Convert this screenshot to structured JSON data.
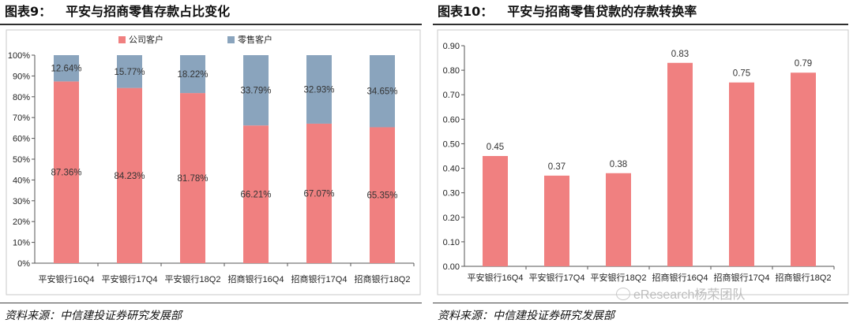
{
  "left_panel": {
    "title_num": "图表9：",
    "title": "平安与招商零售存款占比变化",
    "source": "资料来源：中信建投证券研究发展部"
  },
  "right_panel": {
    "title_num": "图表10：",
    "title": "平安与招商零售贷款的存款转换率",
    "source": "资料来源：中信建投证券研究发展部"
  },
  "watermark": "eResearch杨荣团队",
  "chart_data": [
    {
      "type": "bar",
      "stacked": true,
      "percent": true,
      "categories": [
        "平安银行16Q4",
        "平安银行17Q4",
        "平安银行18Q2",
        "招商银行16Q4",
        "招商银行17Q4",
        "招商银行18Q2"
      ],
      "series": [
        {
          "name": "公司客户",
          "values": [
            87.36,
            84.23,
            81.78,
            66.21,
            67.07,
            65.35
          ],
          "labels": [
            "87.36%",
            "84.23%",
            "81.78%",
            "66.21%",
            "67.07%",
            "65.35%"
          ],
          "color": "#f08080"
        },
        {
          "name": "零售客户",
          "values": [
            12.64,
            15.77,
            18.22,
            33.79,
            32.93,
            34.65
          ],
          "labels": [
            "12.64%",
            "15.77%",
            "18.22%",
            "33.79%",
            "32.93%",
            "34.65%"
          ],
          "color": "#8aa4bd"
        }
      ],
      "yticks": [
        "0%",
        "10%",
        "20%",
        "30%",
        "40%",
        "50%",
        "60%",
        "70%",
        "80%",
        "90%",
        "100%"
      ],
      "ylim": [
        0,
        100
      ],
      "legend": "top",
      "grid": false
    },
    {
      "type": "bar",
      "categories": [
        "平安银行16Q4",
        "平安银行17Q4",
        "平安银行18Q2",
        "招商银行16Q4",
        "招商银行17Q4",
        "招商银行18Q2"
      ],
      "values": [
        0.45,
        0.37,
        0.38,
        0.83,
        0.75,
        0.79
      ],
      "labels": [
        "0.45",
        "0.37",
        "0.38",
        "0.83",
        "0.75",
        "0.79"
      ],
      "color": "#f08080",
      "yticks": [
        "0.00",
        "0.10",
        "0.20",
        "0.30",
        "0.40",
        "0.50",
        "0.60",
        "0.70",
        "0.80",
        "0.90"
      ],
      "ylim": [
        0,
        0.9
      ],
      "grid": false
    }
  ]
}
